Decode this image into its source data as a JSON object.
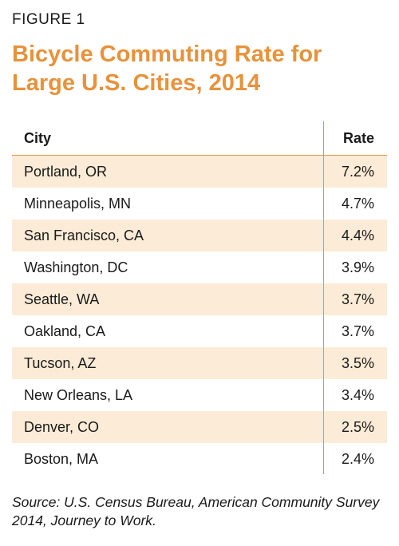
{
  "figure_label": "FIGURE 1",
  "title": "Bicycle Commuting Rate for Large U.S. Cities, 2014",
  "colors": {
    "accent": "#e8923a",
    "row_shade": "#fcebd6"
  },
  "table": {
    "headers": {
      "city": "City",
      "rate": "Rate"
    },
    "rows": [
      {
        "city": "Portland, OR",
        "rate": "7.2%"
      },
      {
        "city": "Minneapolis, MN",
        "rate": "4.7%"
      },
      {
        "city": "San Francisco, CA",
        "rate": "4.4%"
      },
      {
        "city": "Washington, DC",
        "rate": "3.9%"
      },
      {
        "city": "Seattle, WA",
        "rate": "3.7%"
      },
      {
        "city": "Oakland, CA",
        "rate": "3.7%"
      },
      {
        "city": "Tucson, AZ",
        "rate": "3.5%"
      },
      {
        "city": "New Orleans, LA",
        "rate": "3.4%"
      },
      {
        "city": "Denver, CO",
        "rate": "2.5%"
      },
      {
        "city": "Boston, MA",
        "rate": "2.4%"
      }
    ]
  },
  "source": "Source: U.S. Census Bureau, American Community Survey 2014, Journey to Work."
}
